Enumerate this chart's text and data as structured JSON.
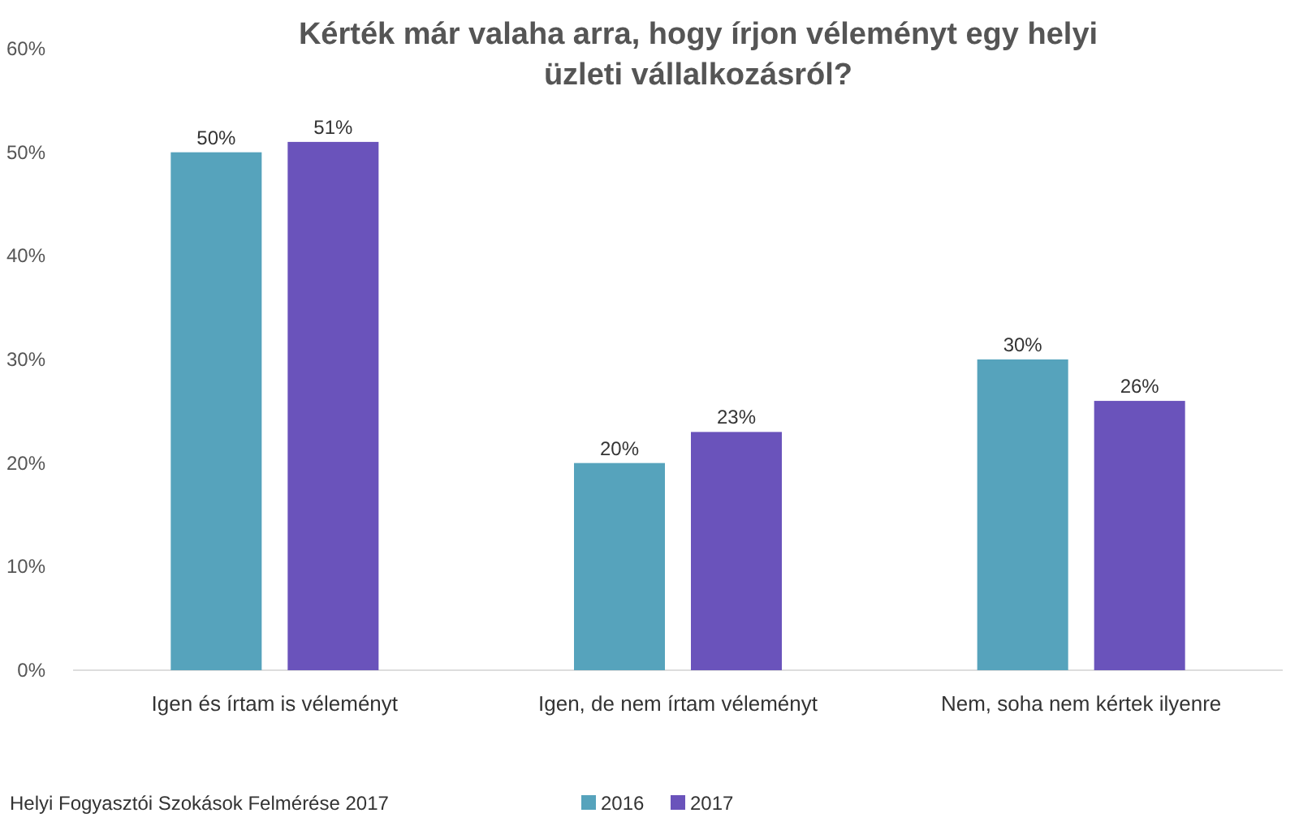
{
  "chart_data": {
    "type": "bar",
    "title": "Kérték már valaha arra, hogy írjon véleményt egy helyi üzleti vállalkozásról?",
    "categories": [
      "Igen és írtam is véleményt",
      "Igen, de nem írtam véleményt",
      "Nem, soha nem kértek ilyenre"
    ],
    "series": [
      {
        "name": "2016",
        "color": "#56a3bc",
        "values": [
          50,
          20,
          30
        ],
        "value_labels": [
          "50%",
          "20%",
          "30%"
        ]
      },
      {
        "name": "2017",
        "color": "#6a53bb",
        "values": [
          51,
          23,
          26
        ],
        "value_labels": [
          "51%",
          "23%",
          "26%"
        ]
      }
    ],
    "ylim": [
      0,
      60
    ],
    "yticks": [
      {
        "value": 0,
        "label": "0%"
      },
      {
        "value": 10,
        "label": "10%"
      },
      {
        "value": 20,
        "label": "20%"
      },
      {
        "value": 30,
        "label": "30%"
      },
      {
        "value": 40,
        "label": "40%"
      },
      {
        "value": 50,
        "label": "50%"
      },
      {
        "value": 60,
        "label": "60%"
      }
    ],
    "legend": "bottom",
    "annotations": [
      "Helyi Fogyasztói Szokások Felmérése 2017"
    ]
  }
}
